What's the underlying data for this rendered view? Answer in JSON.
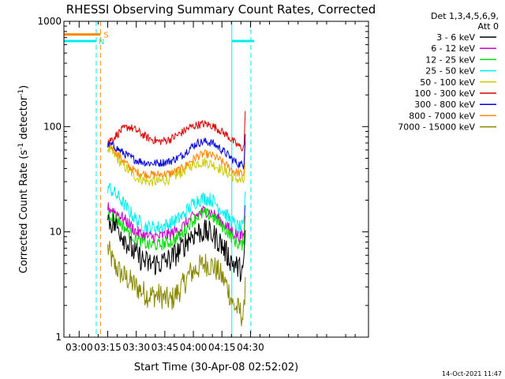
{
  "chart_data": {
    "type": "line",
    "title": "RHESSI Observing Summary Count Rates, Corrected",
    "xlabel": "Start Time (30-Apr-08 02:52:02)",
    "ylabel": "Corrected Count Rate (s",
    "ylabel_sup": "-1",
    "ylabel_mid": " detector",
    "ylabel_end": ")",
    "yscale": "log",
    "ylim": [
      1,
      1000
    ],
    "xlim_min": [
      52,
      212
    ],
    "x_ticks": [
      {
        "min": 60,
        "label": "03:00"
      },
      {
        "min": 75,
        "label": "03:15"
      },
      {
        "min": 90,
        "label": "03:30"
      },
      {
        "min": 105,
        "label": "03:45"
      },
      {
        "min": 120,
        "label": "04:00"
      },
      {
        "min": 135,
        "label": "04:15"
      },
      {
        "min": 150,
        "label": "04:30"
      }
    ],
    "y_ticks": [
      {
        "value": 1,
        "label": "1"
      },
      {
        "value": 10,
        "label": "10"
      },
      {
        "value": 100,
        "label": "100"
      },
      {
        "value": 1000,
        "label": "1000"
      }
    ],
    "legend": {
      "header1": "Det 1,3,4,5,6,9,",
      "header2": "Att 0",
      "entries": [
        {
          "label": "3 - 6 keV",
          "color": "#000000"
        },
        {
          "label": "6 - 12 keV",
          "color": "#cc00cc"
        },
        {
          "label": "12 - 25 keV",
          "color": "#00dd00"
        },
        {
          "label": "25 - 50 keV",
          "color": "#00eeee"
        },
        {
          "label": "50 - 100 keV",
          "color": "#cccc00"
        },
        {
          "label": "100 - 300 keV",
          "color": "#dd0000"
        },
        {
          "label": "300 - 800 keV",
          "color": "#0000dd"
        },
        {
          "label": "800 - 7000 keV",
          "color": "#ff8800"
        },
        {
          "label": "7000 - 15000 keV",
          "color": "#888800"
        }
      ]
    },
    "x_min": [
      75,
      78,
      82,
      86,
      90,
      96,
      102,
      108,
      114,
      118,
      122,
      126,
      130,
      134,
      138,
      141,
      144,
      146.5,
      147.5
    ],
    "series": [
      {
        "name": "3 - 6 keV",
        "color": "#000000",
        "noise": 0.12,
        "values": [
          13,
          12,
          10,
          7.5,
          6,
          5,
          5,
          5.5,
          7,
          9,
          10,
          10,
          9.5,
          8,
          6,
          5,
          4.5,
          4.2,
          14
        ]
      },
      {
        "name": "6 - 12 keV",
        "color": "#cc00cc",
        "noise": 0.06,
        "values": [
          17,
          16,
          14,
          12,
          10,
          9,
          9,
          9.5,
          11,
          13,
          14.5,
          16,
          15,
          13,
          11,
          10,
          9,
          9,
          22
        ]
      },
      {
        "name": "12 - 25 keV",
        "color": "#00dd00",
        "noise": 0.06,
        "values": [
          15,
          14,
          12,
          10,
          8.5,
          7.5,
          7.5,
          8,
          9.5,
          12,
          14,
          15,
          14,
          12,
          10,
          8.5,
          7.5,
          7.5,
          20
        ]
      },
      {
        "name": "25 - 50 keV",
        "color": "#00eeee",
        "noise": 0.07,
        "values": [
          27,
          24,
          20,
          16,
          13,
          11,
          11,
          12,
          14,
          17,
          20,
          21,
          20,
          17,
          14,
          12,
          11,
          11,
          32
        ]
      },
      {
        "name": "50 - 100 keV",
        "color": "#cccc00",
        "noise": 0.05,
        "values": [
          62,
          55,
          45,
          38,
          33,
          30,
          30,
          32,
          37,
          42,
          45,
          46,
          44,
          40,
          36,
          33,
          31,
          30,
          50
        ]
      },
      {
        "name": "100 - 300 keV",
        "color": "#dd0000",
        "noise": 0.04,
        "values": [
          72,
          78,
          92,
          100,
          92,
          78,
          72,
          76,
          88,
          98,
          104,
          106,
          102,
          92,
          82,
          72,
          65,
          62,
          160
        ]
      },
      {
        "name": "300 - 800 keV",
        "color": "#0000dd",
        "noise": 0.04,
        "values": [
          68,
          66,
          58,
          52,
          48,
          45,
          45,
          47,
          53,
          62,
          70,
          72,
          70,
          62,
          54,
          48,
          44,
          43,
          110
        ]
      },
      {
        "name": "800 - 7000 keV",
        "color": "#ff8800",
        "noise": 0.04,
        "values": [
          70,
          62,
          50,
          42,
          37,
          35,
          35,
          36,
          40,
          46,
          52,
          55,
          53,
          48,
          42,
          38,
          36,
          35,
          80
        ]
      },
      {
        "name": "7000 - 15000 keV",
        "color": "#888800",
        "noise": 0.12,
        "values": [
          7,
          5,
          4,
          3.5,
          3,
          2.5,
          2.5,
          2.2,
          3,
          4,
          4.5,
          5,
          4.8,
          4,
          3,
          2,
          1.8,
          1.5,
          5
        ]
      }
    ],
    "saa": {
      "label": "S",
      "color": "#ff8800",
      "level": 750,
      "start": 52,
      "end": 71.2
    },
    "night": {
      "label": "N",
      "color": "#00eeee",
      "level": 650,
      "segments": [
        [
          52,
          69
        ],
        [
          140.2,
          152
        ]
      ]
    },
    "vlines": [
      {
        "min": 69,
        "color": "#00eeee",
        "dash": true
      },
      {
        "min": 71.2,
        "color": "#ff8800",
        "dash": true
      },
      {
        "min": 140.2,
        "color": "#00eeee",
        "dash": false
      },
      {
        "min": 150.2,
        "color": "#00eeee",
        "dash": true
      }
    ]
  },
  "footer": {
    "timestamp": "14-Oct-2021 11:47"
  }
}
